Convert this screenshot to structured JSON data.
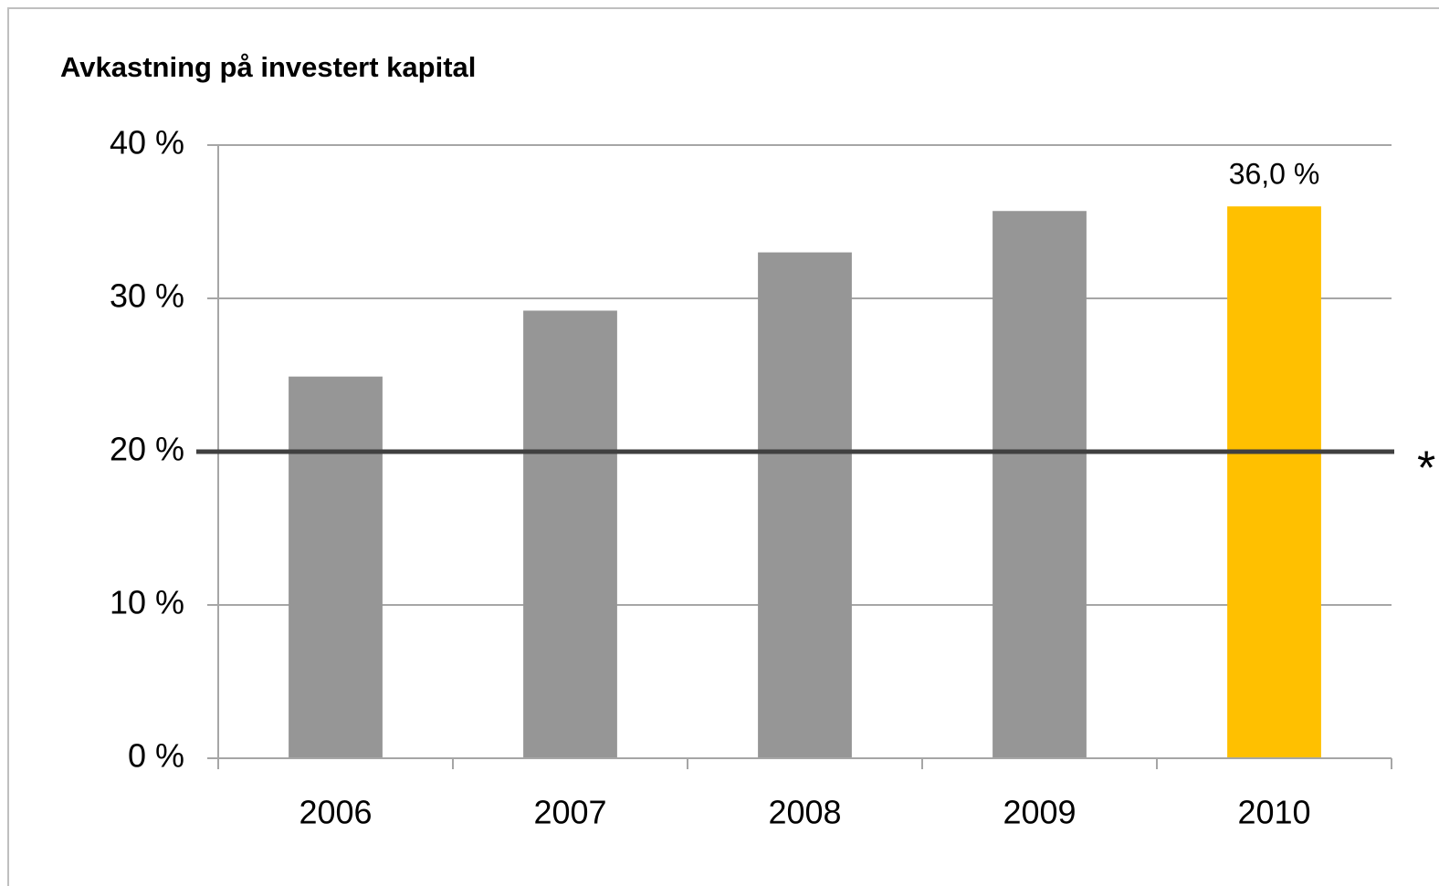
{
  "chart_data": {
    "type": "bar",
    "title": "Avkastning på investert kapital",
    "categories": [
      "2006",
      "2007",
      "2008",
      "2009",
      "2010"
    ],
    "values": [
      24.9,
      29.2,
      33.0,
      35.7,
      36.0
    ],
    "value_labels": [
      null,
      null,
      null,
      null,
      "36,0 %"
    ],
    "colors": [
      "#969696",
      "#969696",
      "#969696",
      "#969696",
      "#ffc000"
    ],
    "ylim": [
      0,
      40
    ],
    "yticks": [
      {
        "value": 0,
        "label": "0 %"
      },
      {
        "value": 10,
        "label": "10 %"
      },
      {
        "value": 20,
        "label": "20 %"
      },
      {
        "value": 30,
        "label": "30 %"
      },
      {
        "value": 40,
        "label": "40 %"
      }
    ],
    "grid": true,
    "reference_line": {
      "value": 20,
      "label": "*",
      "color": "#404040"
    }
  }
}
